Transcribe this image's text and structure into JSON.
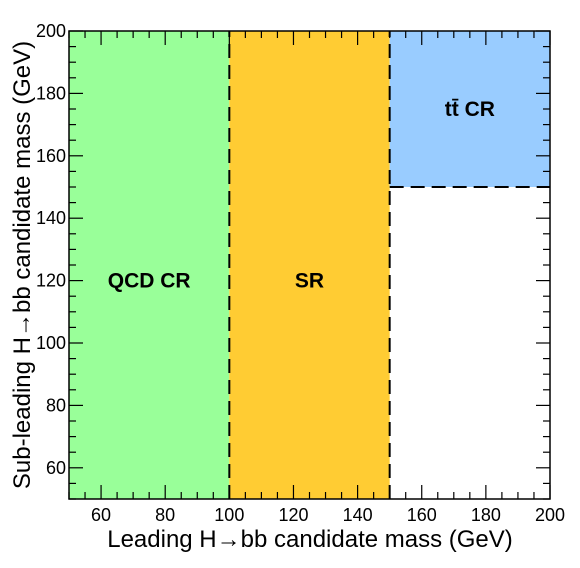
{
  "chart_data": {
    "type": "region-map",
    "xlabel": "Leading H→bb candidate mass (GeV)",
    "ylabel": "Sub-leading H→bb candidate mass (GeV)",
    "xlim": [
      50,
      200
    ],
    "ylim": [
      50,
      200
    ],
    "x_ticks": [
      "60",
      "80",
      "100",
      "120",
      "140",
      "160",
      "180",
      "200"
    ],
    "y_ticks": [
      "60",
      "80",
      "100",
      "120",
      "140",
      "160",
      "180",
      "200"
    ],
    "regions": [
      {
        "name": "QCD CR",
        "label": "QCD CR",
        "x": [
          50,
          100
        ],
        "y": [
          50,
          200
        ],
        "color": "#99ff99"
      },
      {
        "name": "SR",
        "label": "SR",
        "x": [
          100,
          150
        ],
        "y": [
          50,
          200
        ],
        "color": "#ffcc33"
      },
      {
        "name": "ttbar CR",
        "label": "tt̄ CR",
        "x": [
          150,
          200
        ],
        "y": [
          150,
          200
        ],
        "color": "#99ccff"
      }
    ],
    "boundaries": [
      {
        "x": [
          100,
          100
        ],
        "y": [
          50,
          200
        ],
        "style": "dashed"
      },
      {
        "x": [
          150,
          150
        ],
        "y": [
          50,
          200
        ],
        "style": "dashed"
      },
      {
        "x": [
          150,
          200
        ],
        "y": [
          150,
          150
        ],
        "style": "dashed"
      }
    ]
  }
}
